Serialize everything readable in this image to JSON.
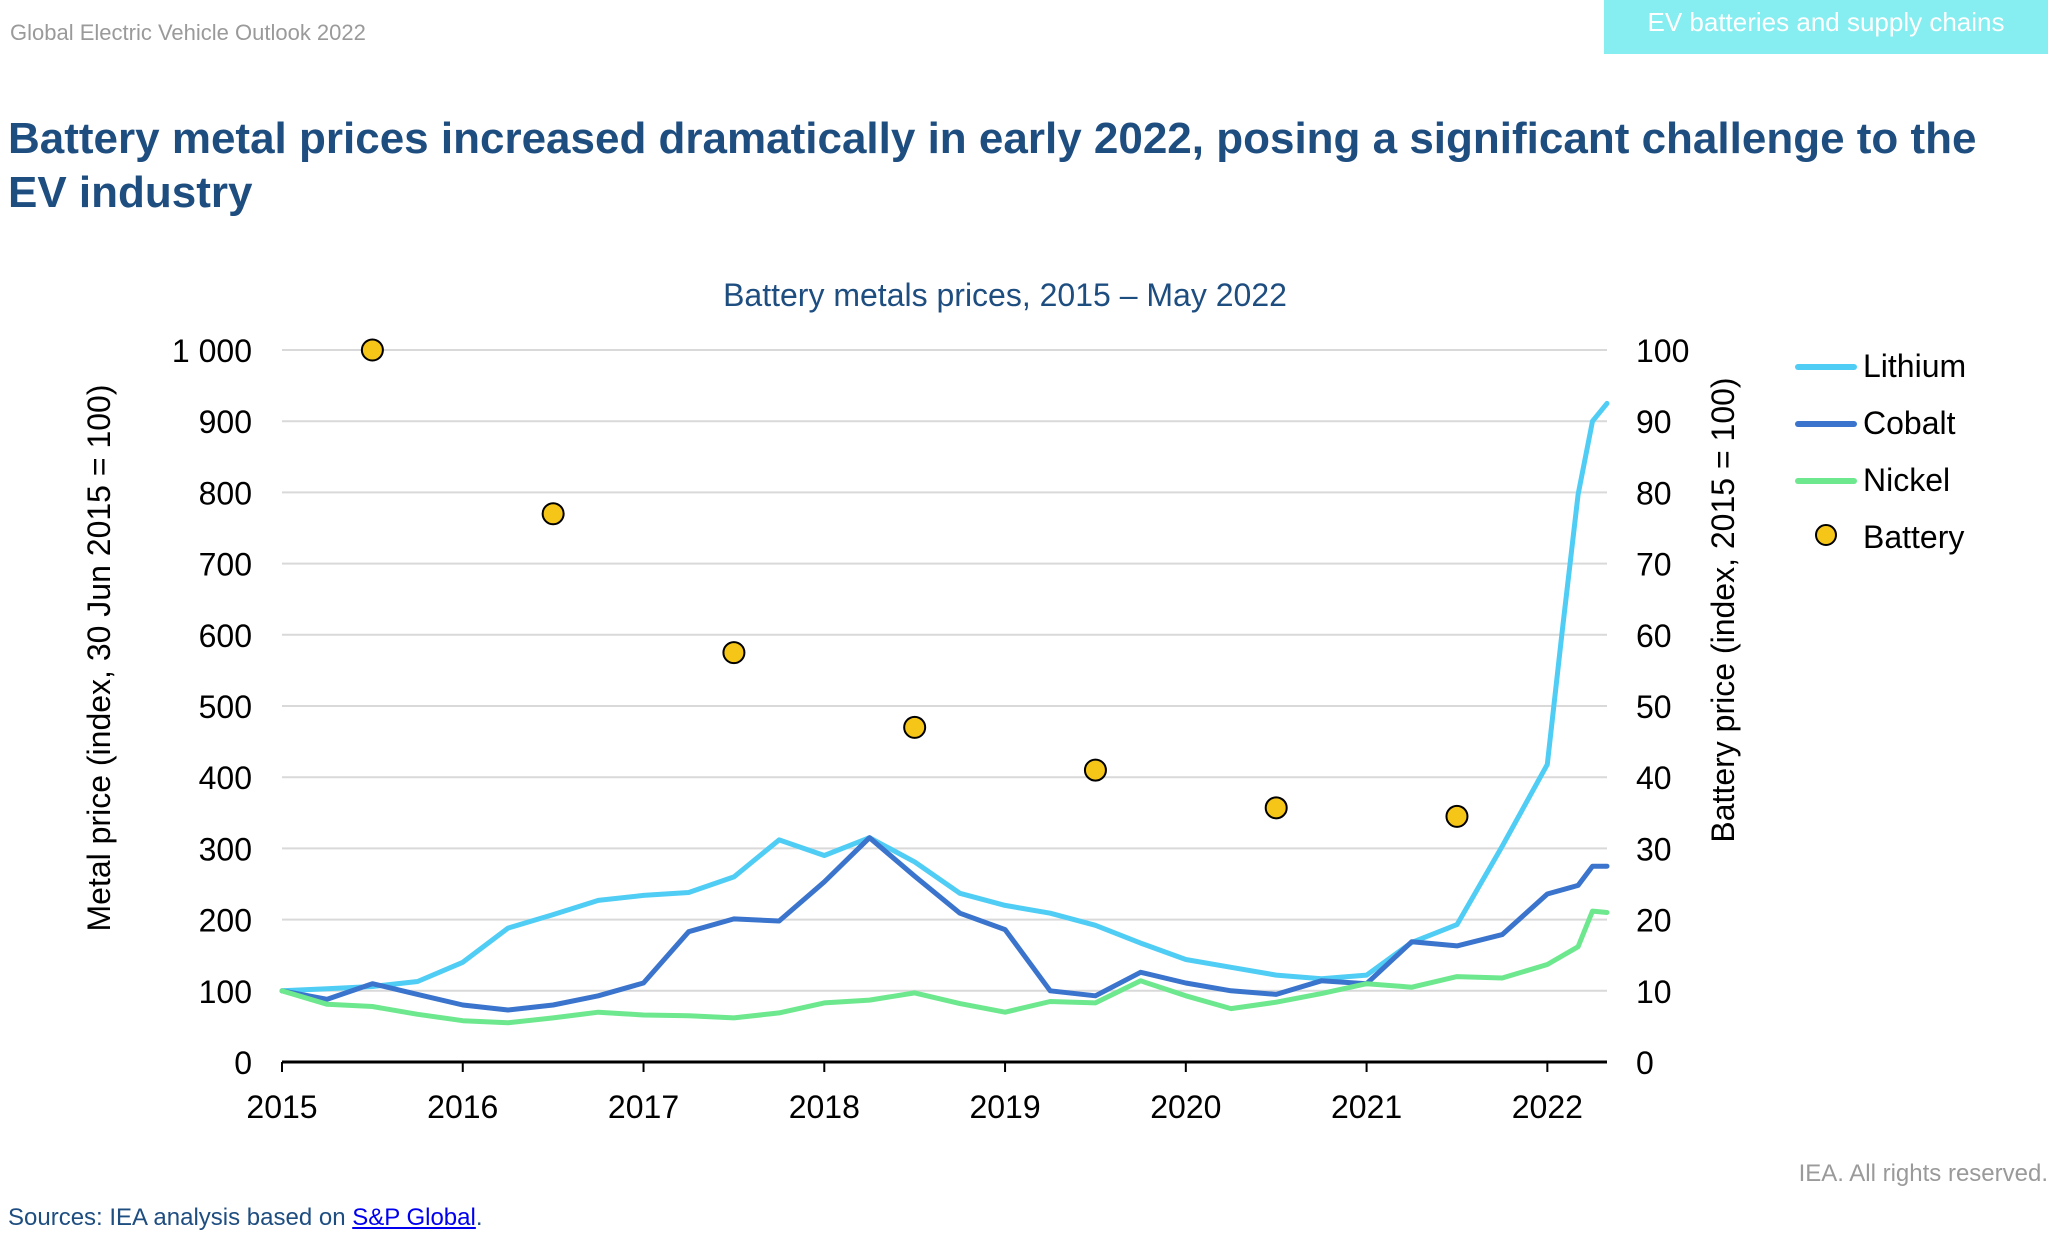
{
  "header": {
    "report_title": "Global Electric Vehicle Outlook 2022",
    "section_badge": "EV batteries and supply chains"
  },
  "headline": "Battery metal prices increased dramatically in early 2022, posing a significant challenge to the EV industry",
  "footer": {
    "rights": "IEA. All rights reserved.",
    "sources_prefix": "Sources: IEA analysis based on ",
    "sources_link": "S&P Global",
    "sources_suffix": "."
  },
  "chart_data": {
    "type": "line",
    "title": "Battery metals prices, 2015 – May 2022",
    "ylabel": "Metal price (index, 30 Jun 2015 = 100)",
    "y2label": "Battery price (index, 2015 = 100)",
    "xlim": [
      2015,
      2022.33
    ],
    "ylim": [
      0,
      1000
    ],
    "y2lim": [
      0,
      100
    ],
    "x_ticks": [
      2015,
      2016,
      2017,
      2018,
      2019,
      2020,
      2021,
      2022
    ],
    "y_ticks": [
      0,
      100,
      200,
      300,
      400,
      500,
      600,
      700,
      800,
      900,
      1000
    ],
    "y_tick_labels": [
      "0",
      "100",
      "200",
      "300",
      "400",
      "500",
      "600",
      "700",
      "800",
      "900",
      "1 000"
    ],
    "y2_ticks": [
      0,
      10,
      20,
      30,
      40,
      50,
      60,
      70,
      80,
      90,
      100
    ],
    "grid": "horizontal",
    "legend_position": "right",
    "colors": {
      "Lithium": "#4fcdf4",
      "Cobalt": "#3a74cc",
      "Nickel": "#6de88e",
      "Battery": "#f5c518",
      "grid": "#d9d9d9",
      "title": "#1e4d80"
    },
    "series": [
      {
        "name": "Lithium",
        "axis": "left",
        "kind": "line",
        "x": [
          2015.0,
          2015.25,
          2015.5,
          2015.75,
          2016.0,
          2016.25,
          2016.5,
          2016.75,
          2017.0,
          2017.25,
          2017.5,
          2017.75,
          2018.0,
          2018.25,
          2018.5,
          2018.75,
          2019.0,
          2019.25,
          2019.5,
          2019.75,
          2020.0,
          2020.25,
          2020.5,
          2020.75,
          2021.0,
          2021.25,
          2021.5,
          2021.75,
          2022.0,
          2022.08,
          2022.17,
          2022.25,
          2022.33
        ],
        "y": [
          100,
          103,
          106,
          113,
          140,
          188,
          207,
          227,
          234,
          238,
          260,
          312,
          290,
          315,
          281,
          237,
          220,
          209,
          192,
          167,
          144,
          133,
          122,
          117,
          122,
          168,
          193,
          303,
          418,
          600,
          797,
          900,
          925
        ]
      },
      {
        "name": "Cobalt",
        "axis": "left",
        "kind": "line",
        "x": [
          2015.0,
          2015.25,
          2015.5,
          2015.75,
          2016.0,
          2016.25,
          2016.5,
          2016.75,
          2017.0,
          2017.25,
          2017.5,
          2017.75,
          2018.0,
          2018.25,
          2018.5,
          2018.75,
          2019.0,
          2019.25,
          2019.5,
          2019.75,
          2020.0,
          2020.25,
          2020.5,
          2020.75,
          2021.0,
          2021.25,
          2021.5,
          2021.75,
          2022.0,
          2022.17,
          2022.25,
          2022.33
        ],
        "y": [
          100,
          88,
          110,
          95,
          80,
          73,
          80,
          93,
          111,
          183,
          201,
          198,
          253,
          315,
          261,
          209,
          186,
          100,
          93,
          126,
          111,
          100,
          95,
          114,
          110,
          169,
          163,
          179,
          236,
          248,
          275,
          275
        ]
      },
      {
        "name": "Nickel",
        "axis": "left",
        "kind": "line",
        "x": [
          2015.0,
          2015.25,
          2015.5,
          2015.75,
          2016.0,
          2016.25,
          2016.5,
          2016.75,
          2017.0,
          2017.25,
          2017.5,
          2017.75,
          2018.0,
          2018.25,
          2018.5,
          2018.75,
          2019.0,
          2019.25,
          2019.5,
          2019.75,
          2020.0,
          2020.25,
          2020.5,
          2020.75,
          2021.0,
          2021.25,
          2021.5,
          2021.75,
          2022.0,
          2022.17,
          2022.25,
          2022.33
        ],
        "y": [
          100,
          81,
          78,
          67,
          58,
          55,
          62,
          70,
          66,
          65,
          62,
          69,
          83,
          87,
          97,
          82,
          70,
          85,
          83,
          114,
          93,
          75,
          84,
          96,
          110,
          105,
          120,
          118,
          137,
          162,
          212,
          210
        ]
      },
      {
        "name": "Battery",
        "axis": "right",
        "kind": "points",
        "x": [
          2015.5,
          2016.5,
          2017.5,
          2018.5,
          2019.5,
          2020.5,
          2021.5
        ],
        "y": [
          100,
          77,
          57.5,
          47,
          41,
          35.7,
          34.5
        ]
      }
    ]
  }
}
